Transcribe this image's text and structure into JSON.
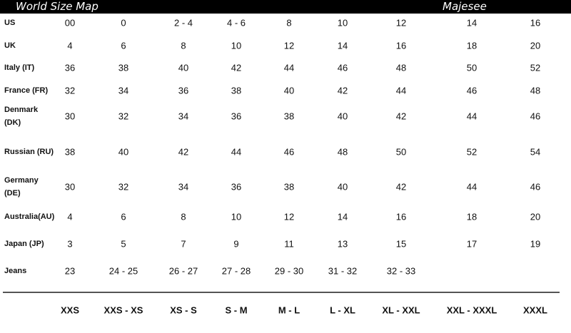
{
  "header": {
    "title": "World Size Map",
    "brand": "Majesee"
  },
  "table": {
    "rows": [
      {
        "label": "US",
        "values": [
          "00",
          "0",
          "2 - 4",
          "4 - 6",
          "8",
          "10",
          "12",
          "14",
          "16"
        ]
      },
      {
        "label": "UK",
        "values": [
          "4",
          "6",
          "8",
          "10",
          "12",
          "14",
          "16",
          "18",
          "20"
        ]
      },
      {
        "label": "Italy (IT)",
        "values": [
          "36",
          "38",
          "40",
          "42",
          "44",
          "46",
          "48",
          "50",
          "52"
        ]
      },
      {
        "label": "France (FR)",
        "values": [
          "32",
          "34",
          "36",
          "38",
          "40",
          "42",
          "44",
          "46",
          "48"
        ]
      },
      {
        "label": "Denmark\n(DK)",
        "values": [
          "30",
          "32",
          "34",
          "36",
          "38",
          "40",
          "42",
          "44",
          "46"
        ]
      },
      {
        "label": "Russian (RU)",
        "values": [
          "38",
          "40",
          "42",
          "44",
          "46",
          "48",
          "50",
          "52",
          "54"
        ]
      },
      {
        "label": "Germany\n(DE)",
        "values": [
          "30",
          "32",
          "34",
          "36",
          "38",
          "40",
          "42",
          "44",
          "46"
        ]
      },
      {
        "label": "Australia(AU)",
        "values": [
          "4",
          "6",
          "8",
          "10",
          "12",
          "14",
          "16",
          "18",
          "20"
        ]
      },
      {
        "label": "Japan (JP)",
        "values": [
          "3",
          "5",
          "7",
          "9",
          "11",
          "13",
          "15",
          "17",
          "19"
        ]
      },
      {
        "label": "Jeans",
        "values": [
          "23",
          "24 - 25",
          "26 - 27",
          "27 - 28",
          "29 - 30",
          "31 - 32",
          "32 - 33"
        ]
      }
    ],
    "sizes": [
      "XXS",
      "XXS - XS",
      "XS - S",
      "S - M",
      "M - L",
      "L - XL",
      "XL - XXL",
      "XXL - XXXL",
      "XXXL"
    ]
  }
}
